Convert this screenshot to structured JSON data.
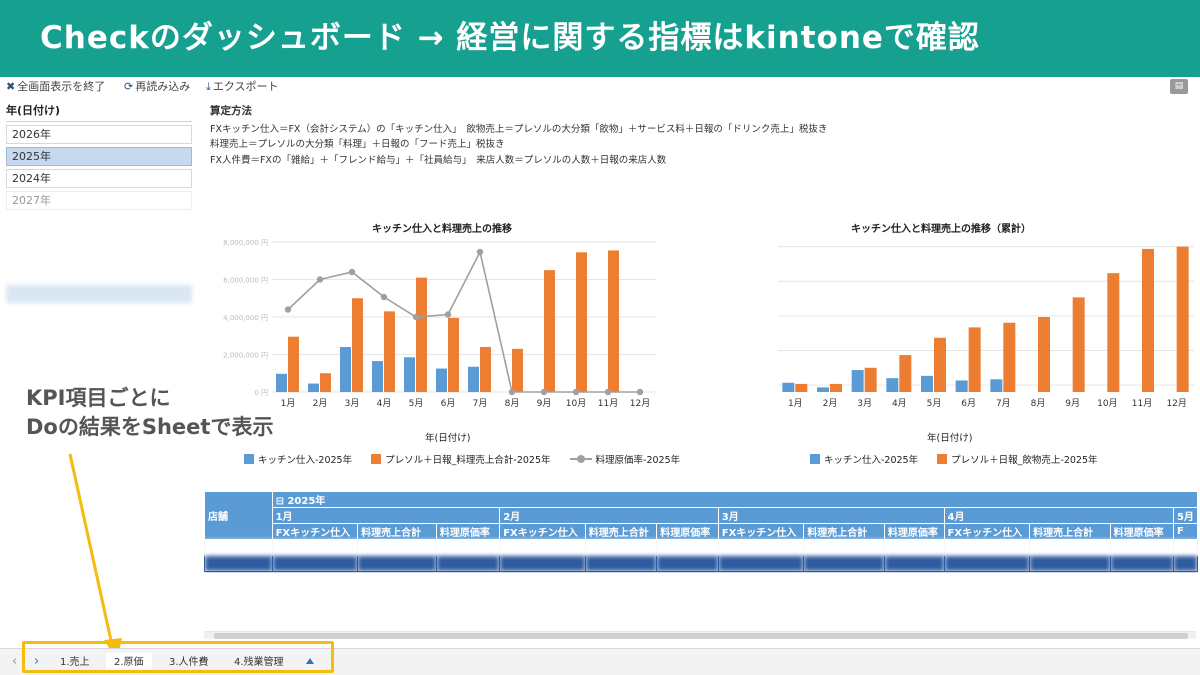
{
  "banner": {
    "title": "Checkのダッシュボード → 経営に関する指標はkintoneで確認"
  },
  "toolbar": {
    "exit_fullscreen": "全画面表示を終了",
    "reload": "再読み込み",
    "export": "エクスポート"
  },
  "icons": {
    "exit_fullscreen": "shrink-icon",
    "reload": "refresh-icon",
    "export": "download-icon",
    "comment": "comment-icon"
  },
  "filter": {
    "title": "年(日付け)",
    "items": [
      "2026年",
      "2025年",
      "2024年",
      "2027年"
    ],
    "selected": "2025年"
  },
  "method": {
    "title": "算定方法",
    "lines": [
      "FXキッチン仕入＝FX（会計システム）の「キッチン仕入」　飲物売上＝プレソルの大分類「飲物」＋サービス料＋日報の「ドリンク売上」税抜き",
      "料理売上＝プレソルの大分類「料理」＋日報の「フード売上」税抜き",
      "FX人件費＝FXの「雑給」＋「フレンド給与」＋「社員給与」　来店人数＝プレソルの人数＋日報の来店人数"
    ]
  },
  "chart_data": [
    {
      "type": "bar",
      "title": "キッチン仕入と料理売上の推移",
      "xlabel": "年(日付け)",
      "categories": [
        "1月",
        "2月",
        "3月",
        "4月",
        "5月",
        "6月",
        "7月",
        "8月",
        "9月",
        "10月",
        "11月",
        "12月"
      ],
      "ylim": [
        0,
        8000000
      ],
      "y_ticks": [
        0,
        2000000,
        4000000,
        6000000,
        8000000
      ],
      "series": [
        {
          "name": "キッチン仕入-2025年",
          "type": "bar",
          "color": "#5b9bd5",
          "values": [
            970000,
            450000,
            2400000,
            1650000,
            1850000,
            1250000,
            1350000,
            0,
            0,
            0,
            0,
            0
          ]
        },
        {
          "name": "プレソル＋日報_料理売上合計-2025年",
          "type": "bar",
          "color": "#ed7d31",
          "values": [
            2950000,
            1000000,
            5000000,
            4300000,
            6100000,
            3950000,
            2400000,
            2300000,
            6500000,
            7450000,
            7550000,
            0
          ]
        },
        {
          "name": "料理原価率-2025年",
          "type": "line",
          "color": "#a0a0a0",
          "values": [
            0.33,
            0.45,
            0.48,
            0.38,
            0.3,
            0.31,
            0.56,
            0,
            0,
            0,
            0,
            0
          ]
        }
      ],
      "legend": "bottom"
    },
    {
      "type": "bar",
      "title": "キッチン仕入と料理売上の推移（累計）",
      "xlabel": "年(日付け)",
      "categories": [
        "1月",
        "2月",
        "3月",
        "4月",
        "5月",
        "6月",
        "7月",
        "8月",
        "9月",
        "10月",
        "11月",
        "12月"
      ],
      "series": [
        {
          "name": "キッチン仕入-2025年",
          "color": "#5b9bd5",
          "values": [
            8,
            4,
            19,
            12,
            14,
            10,
            11,
            0,
            0,
            0,
            0,
            0
          ]
        },
        {
          "name": "プレソル＋日報_飲物売上-2025年",
          "color": "#ed7d31",
          "values": [
            7,
            7,
            21,
            32,
            47,
            56,
            60,
            65,
            82,
            103,
            124,
            126
          ]
        }
      ],
      "legend": "bottom"
    }
  ],
  "annotation": {
    "line1": "KPI項目ごとに",
    "line2": "Doの結果をSheetで表示"
  },
  "pivot": {
    "row_header": "店舗",
    "year": "2025年",
    "months": [
      "1月",
      "2月",
      "3月",
      "4月",
      "5月"
    ],
    "columns": [
      "FXキッチン仕入",
      "料理売上合計",
      "料理原価率"
    ]
  },
  "sheets": {
    "tabs": [
      "1.売上",
      "2.原価",
      "3.人件費",
      "4.残業管理"
    ],
    "active": "2.原価"
  }
}
